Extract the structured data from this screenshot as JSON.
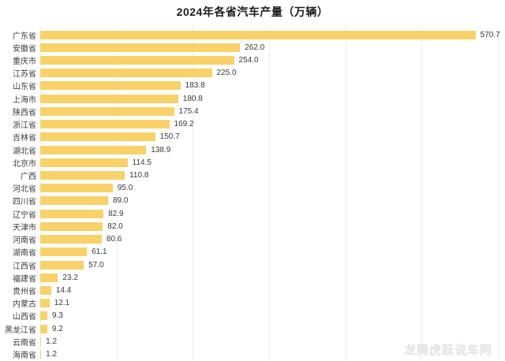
{
  "title": "2024年各省汽车产量（万辆）",
  "watermark": "龙腾虎跃说车阿",
  "colors": {
    "background": "#ffffff",
    "bar": "#F8D169",
    "title_text": "#1c1c1c",
    "category_label": "#3a3a3a",
    "value_label": "#3a3a3a",
    "gridline": "#ededed",
    "watermark": "#e3e3e3"
  },
  "chart_data": {
    "type": "bar",
    "orientation": "horizontal",
    "title": "2024年各省汽车产量（万辆）",
    "categories": [
      "广东省",
      "安徽省",
      "重庆市",
      "江苏省",
      "山东省",
      "上海市",
      "陕西省",
      "浙江省",
      "吉林省",
      "湖北省",
      "北京市",
      "广西",
      "河北省",
      "四川省",
      "辽宁省",
      "天津市",
      "河南省",
      "湖南省",
      "江西省",
      "福建省",
      "贵州省",
      "内蒙古",
      "山西省",
      "黑龙江省",
      "云南省",
      "海南省"
    ],
    "values": [
      570.7,
      262.0,
      254.0,
      225.0,
      183.8,
      180.8,
      175.4,
      169.2,
      150.7,
      138.9,
      114.5,
      110.8,
      95.0,
      89.0,
      82.9,
      82.0,
      80.6,
      61.1,
      57.0,
      23.2,
      14.4,
      12.1,
      9.3,
      9.2,
      1.2,
      1.2
    ],
    "value_labels": [
      "570.7",
      "262.0",
      "254.0",
      "225.0",
      "183.8",
      "180.8",
      "175.4",
      "169.2",
      "150.7",
      "138.9",
      "114.5",
      "110.8",
      "95.0",
      "89.0",
      "82.9",
      "82.0",
      "80.6",
      "61.1",
      "57.0",
      "23.2",
      "14.4",
      "12.1",
      "9.3",
      "9.2",
      "1.2",
      "1.2"
    ],
    "xlabel": "",
    "ylabel": "",
    "xlim": [
      0,
      600
    ],
    "grid": {
      "vertical": true,
      "horizontal": false,
      "interval": 100
    },
    "legend": "none",
    "bar_color": "#F8D169",
    "sort": "descending"
  }
}
